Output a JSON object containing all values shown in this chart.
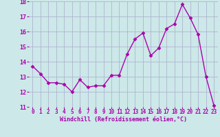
{
  "x": [
    0,
    1,
    2,
    3,
    4,
    5,
    6,
    7,
    8,
    9,
    10,
    11,
    12,
    13,
    14,
    15,
    16,
    17,
    18,
    19,
    20,
    21,
    22,
    23
  ],
  "y": [
    13.7,
    13.2,
    12.6,
    12.6,
    12.5,
    12.0,
    12.8,
    12.3,
    12.4,
    12.4,
    13.1,
    13.1,
    14.5,
    15.5,
    15.9,
    14.4,
    14.9,
    16.2,
    16.5,
    17.8,
    16.9,
    15.8,
    13.0,
    11.1
  ],
  "line_color": "#aa00aa",
  "marker": "D",
  "marker_size": 2.5,
  "bg_color": "#cce8e8",
  "grid_color": "#aaaacc",
  "xlabel": "Windchill (Refroidissement éolien,°C)",
  "xlabel_color": "#aa00aa",
  "tick_color": "#aa00aa",
  "ylim": [
    11,
    18
  ],
  "xlim": [
    -0.5,
    23.5
  ],
  "yticks": [
    11,
    12,
    13,
    14,
    15,
    16,
    17,
    18
  ],
  "xticks": [
    0,
    1,
    2,
    3,
    4,
    5,
    6,
    7,
    8,
    9,
    10,
    11,
    12,
    13,
    14,
    15,
    16,
    17,
    18,
    19,
    20,
    21,
    22,
    23
  ],
  "tick_fontsize": 5.5,
  "xlabel_fontsize": 6.0,
  "linewidth": 1.0
}
